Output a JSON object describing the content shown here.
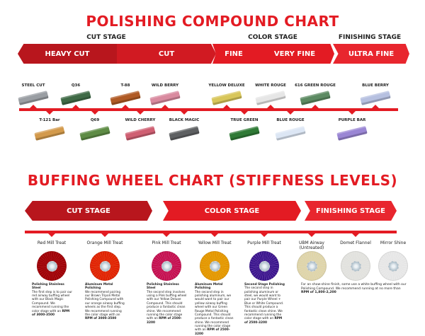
{
  "compound_chart": {
    "title": "POLISHING COMPOUND CHART",
    "stages": [
      "CUT STAGE",
      "COLOR STAGE",
      "FINISHING STAGE"
    ],
    "segments": [
      {
        "label": "HEAVY CUT",
        "color": "#b8161d"
      },
      {
        "label": "CUT",
        "color": "#d11a22"
      },
      {
        "label": "FINE",
        "color": "#e31b23"
      },
      {
        "label": "VERY FINE",
        "color": "#e31b23"
      },
      {
        "label": "ULTRA FINE",
        "color": "#e8262e"
      }
    ],
    "compounds_top": [
      {
        "name": "STEEL CUT",
        "color": "#9a9ea3"
      },
      {
        "name": "Q36",
        "color": "#3f6a46"
      },
      {
        "name": "T-88",
        "color": "#b05a25"
      },
      {
        "name": "WILD BERRY",
        "color": "#d98a9f"
      },
      {
        "name": "YELLOW DELUXE",
        "color": "#d8c65a"
      },
      {
        "name": "WHITE ROUGE",
        "color": "#e6e6e6"
      },
      {
        "name": "616 GREEN ROUGE",
        "color": "#5c8a62"
      },
      {
        "name": "BLUE BERRY",
        "color": "#b6c0e0"
      }
    ],
    "compounds_bottom": [
      {
        "name": "T-121 Bar",
        "color": "#d39a4c"
      },
      {
        "name": "Q69",
        "color": "#5e8c45"
      },
      {
        "name": "WILD CHERRY",
        "color": "#cf5f72"
      },
      {
        "name": "BLACK MAGIC",
        "color": "#5e6062"
      },
      {
        "name": "TRUE GREEN",
        "color": "#2f7a36"
      },
      {
        "name": "BLUE ROUGE",
        "color": "#dce6f4"
      },
      {
        "name": "PURPLE BAR",
        "color": "#9a86d4"
      }
    ]
  },
  "wheel_chart": {
    "title": "BUFFING WHEEL CHART (STIFFNESS LEVELS)",
    "segments": [
      {
        "label": "CUT STAGE",
        "color": "#b8161d"
      },
      {
        "label": "COLOR STAGE",
        "color": "#e31b23"
      },
      {
        "label": "FINISHING STAGE",
        "color": "#e8262e"
      }
    ],
    "wheels": [
      {
        "name": "Red Mill Treat",
        "color": "#c8202a",
        "heading": "Polishing Stainless Steel",
        "text": "The first step is to pair our red airway buffing wheel with our Black Magic Compound. We recommend running the color stage with an",
        "rpm": "RPM of 3000-3500"
      },
      {
        "name": "Orange Mill Treat",
        "color": "#f05a22",
        "heading": "Aluminum Metal Polishing",
        "text": "We recommend pairing our Brown Tripoli Metal Polishing Compound with our orange airway buffing wheels as the first step. We recommend running the color stage with an",
        "rpm": "RPM of 3000-3500"
      },
      {
        "name": "Pink Mill Treat",
        "color": "#e0408c",
        "heading": "Polishing Stainless Steel",
        "text": "The second step involves using a Pink buffing wheel with our Yellow Deluxe Compound. This should produce a fantastic clean shine. We recommend running the color stage with an",
        "rpm": "RPM of 2500-3200"
      },
      {
        "name": "Yellow Mill Treat",
        "color": "#f2c21a",
        "heading": "Aluminum Metal Polishing",
        "text": "The second step in polishing aluminum, we would want to pair our yellow airway buffing wheel with our Green Rouge Metal Polishing Compound. This should produce a fantastic clean shine. We recommend running the color stage with an",
        "rpm": "RPM of 2500-3200"
      },
      {
        "name": "Purple Mill Treat",
        "color": "#7a4bbd",
        "heading": "Second Stage Polishing",
        "text": "The second step in polishing aluminum or steel, we would want to pair our Purple Wheel + Blue or White Compound. This should produce a fantastic clean shine. We recommend running the color stage with an",
        "rpm": "RPM of 2500-3200"
      },
      {
        "name": "UBM Airway (Untreated)",
        "color": "#efe9cf"
      },
      {
        "name": "Domet Flannel",
        "color": "#f1f1ef"
      },
      {
        "name": "Mirror Shine",
        "color": "#f4f4f4"
      }
    ],
    "finishing_note": "For an show-shine finish, some use a white buffing wheel with our Polishing Compound. We recommend running at no more than",
    "finishing_rpm": "RPM of 1,800-2,200"
  }
}
